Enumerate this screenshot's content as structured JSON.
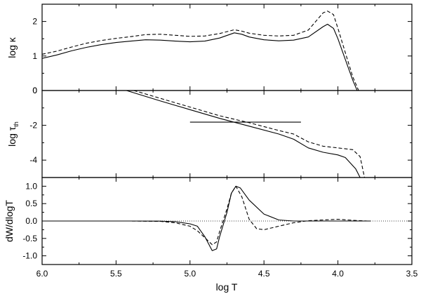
{
  "chart_data": {
    "type": "line",
    "x_axis": {
      "label": "log T",
      "range": [
        6.0,
        3.5
      ],
      "reversed": true,
      "ticks": [
        6.0,
        5.5,
        5.0,
        4.5,
        4.0,
        3.5
      ],
      "tick_labels": [
        "6.0",
        "5.5",
        "5.0",
        "4.5",
        "4.0",
        "3.5"
      ]
    },
    "panels": [
      {
        "id": "kappa",
        "ylabel": "log κ",
        "ylim": [
          0,
          2.5
        ],
        "yticks": [
          0,
          1,
          2
        ],
        "ytick_labels": [
          "0",
          "1",
          "2"
        ],
        "series": [
          {
            "style": "solid",
            "points": [
              [
                6.0,
                0.93
              ],
              [
                5.9,
                1.03
              ],
              [
                5.8,
                1.15
              ],
              [
                5.7,
                1.25
              ],
              [
                5.6,
                1.33
              ],
              [
                5.5,
                1.39
              ],
              [
                5.4,
                1.43
              ],
              [
                5.3,
                1.47
              ],
              [
                5.2,
                1.46
              ],
              [
                5.1,
                1.43
              ],
              [
                5.0,
                1.41
              ],
              [
                4.9,
                1.43
              ],
              [
                4.8,
                1.52
              ],
              [
                4.7,
                1.67
              ],
              [
                4.65,
                1.63
              ],
              [
                4.6,
                1.55
              ],
              [
                4.5,
                1.47
              ],
              [
                4.4,
                1.44
              ],
              [
                4.3,
                1.46
              ],
              [
                4.2,
                1.55
              ],
              [
                4.1,
                1.85
              ],
              [
                4.07,
                1.92
              ],
              [
                4.03,
                1.8
              ],
              [
                4.0,
                1.5
              ],
              [
                3.95,
                0.9
              ],
              [
                3.9,
                0.3
              ],
              [
                3.87,
                0.0
              ]
            ]
          },
          {
            "style": "dashed",
            "points": [
              [
                6.0,
                1.05
              ],
              [
                5.9,
                1.14
              ],
              [
                5.8,
                1.26
              ],
              [
                5.7,
                1.37
              ],
              [
                5.6,
                1.45
              ],
              [
                5.5,
                1.51
              ],
              [
                5.4,
                1.56
              ],
              [
                5.3,
                1.62
              ],
              [
                5.2,
                1.63
              ],
              [
                5.1,
                1.6
              ],
              [
                5.0,
                1.57
              ],
              [
                4.9,
                1.58
              ],
              [
                4.8,
                1.65
              ],
              [
                4.7,
                1.76
              ],
              [
                4.65,
                1.72
              ],
              [
                4.6,
                1.66
              ],
              [
                4.5,
                1.6
              ],
              [
                4.4,
                1.58
              ],
              [
                4.3,
                1.6
              ],
              [
                4.2,
                1.75
              ],
              [
                4.1,
                2.25
              ],
              [
                4.07,
                2.3
              ],
              [
                4.03,
                2.2
              ],
              [
                4.0,
                1.8
              ],
              [
                3.95,
                1.1
              ],
              [
                3.9,
                0.4
              ],
              [
                3.86,
                0.0
              ]
            ]
          }
        ]
      },
      {
        "id": "tau",
        "ylabel": "log τ",
        "ylabel_sub": "th",
        "ylim": [
          -5,
          0
        ],
        "yticks": [
          -4,
          -2,
          0
        ],
        "ytick_labels": [
          "-4",
          "-2",
          "0"
        ],
        "series": [
          {
            "style": "solid",
            "points": [
              [
                5.43,
                0.0
              ],
              [
                5.2,
                -0.6
              ],
              [
                5.0,
                -1.1
              ],
              [
                4.8,
                -1.6
              ],
              [
                4.6,
                -2.05
              ],
              [
                4.4,
                -2.5
              ],
              [
                4.3,
                -2.8
              ],
              [
                4.2,
                -3.3
              ],
              [
                4.1,
                -3.55
              ],
              [
                4.0,
                -3.7
              ],
              [
                3.95,
                -3.85
              ],
              [
                3.88,
                -4.5
              ],
              [
                3.85,
                -5.0
              ]
            ]
          },
          {
            "style": "dashed",
            "points": [
              [
                5.38,
                0.0
              ],
              [
                5.2,
                -0.45
              ],
              [
                5.0,
                -0.95
              ],
              [
                4.8,
                -1.45
              ],
              [
                4.6,
                -1.85
              ],
              [
                4.4,
                -2.3
              ],
              [
                4.3,
                -2.5
              ],
              [
                4.2,
                -2.95
              ],
              [
                4.1,
                -3.2
              ],
              [
                4.0,
                -3.3
              ],
              [
                3.9,
                -3.4
              ],
              [
                3.85,
                -3.8
              ],
              [
                3.82,
                -5.0
              ]
            ]
          },
          {
            "style": "solid",
            "points": [
              [
                5.0,
                -1.82
              ],
              [
                4.25,
                -1.82
              ]
            ]
          }
        ]
      },
      {
        "id": "dw",
        "ylabel": "dW/dlogT",
        "ylim": [
          -1.25,
          1.25
        ],
        "yticks": [
          -1.0,
          -0.5,
          0.0,
          0.5,
          1.0
        ],
        "ytick_labels": [
          "-1.0",
          "-0.5",
          "0.0",
          "0.5",
          "1.0"
        ],
        "series": [
          {
            "style": "solid",
            "points": [
              [
                6.0,
                0.0
              ],
              [
                5.4,
                0.0
              ],
              [
                5.2,
                -0.005
              ],
              [
                5.1,
                -0.02
              ],
              [
                5.0,
                -0.08
              ],
              [
                4.95,
                -0.15
              ],
              [
                4.9,
                -0.45
              ],
              [
                4.85,
                -0.85
              ],
              [
                4.82,
                -0.8
              ],
              [
                4.8,
                -0.45
              ],
              [
                4.75,
                0.25
              ],
              [
                4.72,
                0.8
              ],
              [
                4.69,
                1.0
              ],
              [
                4.66,
                0.95
              ],
              [
                4.6,
                0.6
              ],
              [
                4.5,
                0.2
              ],
              [
                4.4,
                0.03
              ],
              [
                4.3,
                0.0
              ],
              [
                4.0,
                0.0
              ],
              [
                3.78,
                0.0
              ]
            ]
          },
          {
            "style": "dashed",
            "points": [
              [
                6.0,
                0.0
              ],
              [
                5.4,
                0.0
              ],
              [
                5.2,
                -0.01
              ],
              [
                5.1,
                -0.05
              ],
              [
                5.0,
                -0.15
              ],
              [
                4.95,
                -0.28
              ],
              [
                4.9,
                -0.48
              ],
              [
                4.85,
                -0.68
              ],
              [
                4.82,
                -0.6
              ],
              [
                4.8,
                -0.3
              ],
              [
                4.75,
                0.35
              ],
              [
                4.72,
                0.8
              ],
              [
                4.69,
                1.0
              ],
              [
                4.65,
                0.7
              ],
              [
                4.6,
                0.05
              ],
              [
                4.55,
                -0.22
              ],
              [
                4.5,
                -0.25
              ],
              [
                4.4,
                -0.15
              ],
              [
                4.3,
                -0.05
              ],
              [
                4.2,
                0.01
              ],
              [
                4.1,
                0.03
              ],
              [
                4.0,
                0.05
              ],
              [
                3.9,
                0.02
              ],
              [
                3.8,
                0.0
              ]
            ]
          },
          {
            "style": "dotted",
            "points": [
              [
                6.0,
                0.0
              ],
              [
                3.5,
                0.0
              ]
            ]
          }
        ]
      }
    ]
  }
}
